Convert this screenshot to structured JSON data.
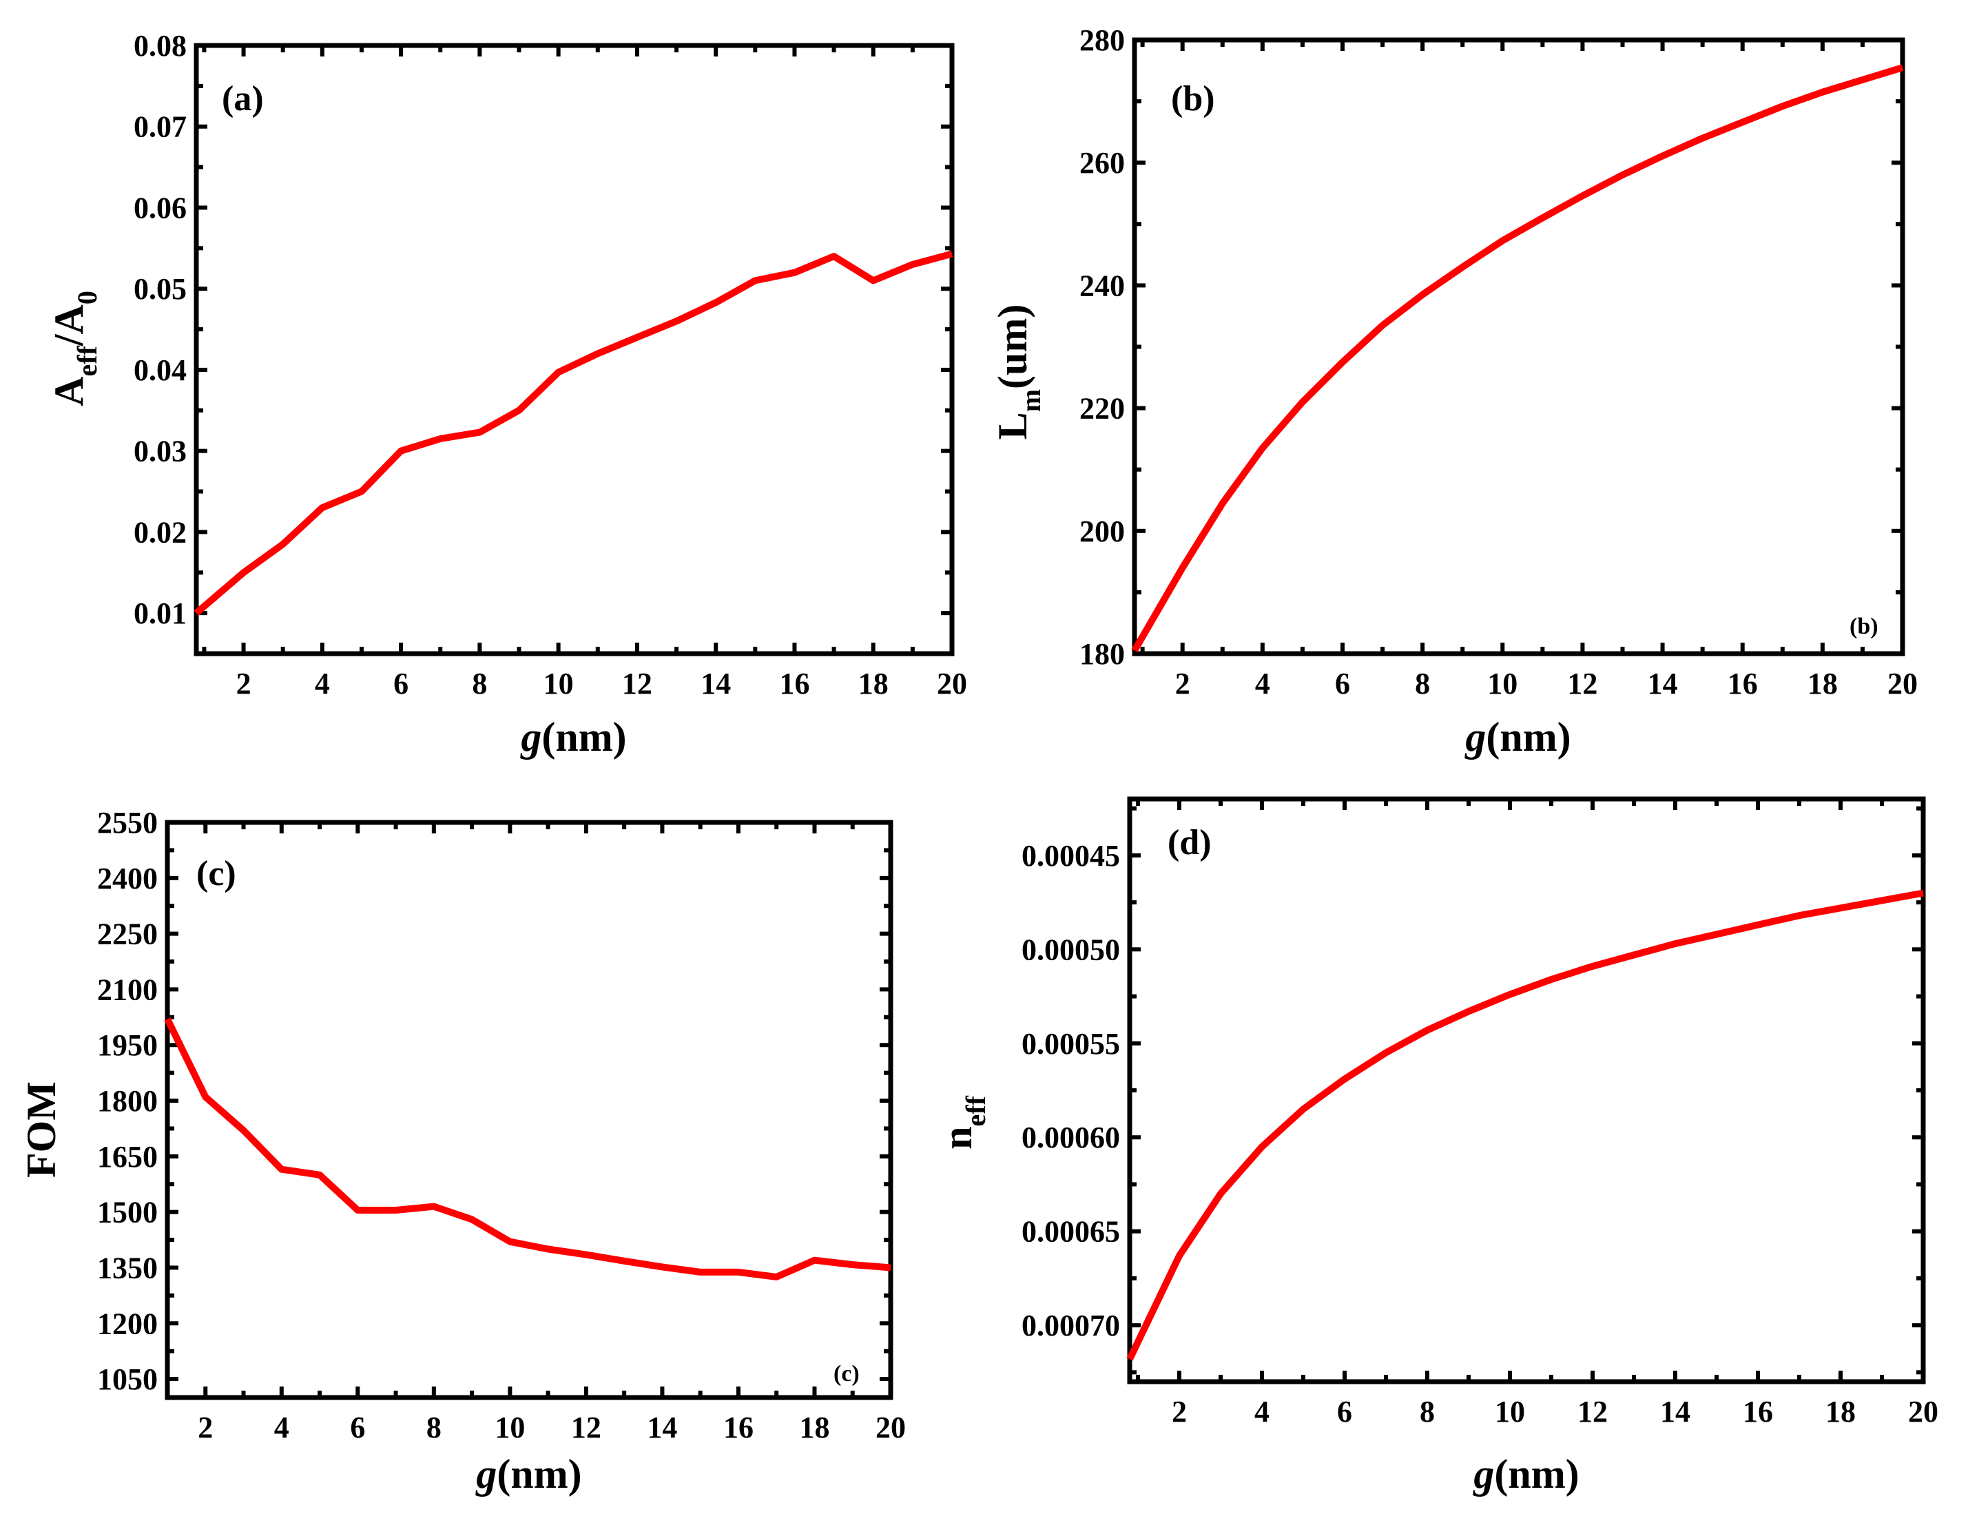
{
  "chart_data": [
    {
      "type": "line",
      "panel_label": "(a)",
      "xlabel": "g(nm)",
      "xlabel_italic_part": "g",
      "xlabel_rest": "(nm)",
      "ylabel_parts": {
        "a": "A",
        "a_sub": "eff",
        "slash": "/A",
        "slash_sub": "0"
      },
      "xlim": [
        0.8,
        20
      ],
      "ylim": [
        0.005,
        0.08
      ],
      "x_ticks": [
        2,
        4,
        6,
        8,
        10,
        12,
        14,
        16,
        18,
        20
      ],
      "x_tick_labels": [
        "2",
        "4",
        "6",
        "8",
        "10",
        "12",
        "14",
        "16",
        "18",
        "20"
      ],
      "y_ticks": [
        0.01,
        0.02,
        0.03,
        0.04,
        0.05,
        0.06,
        0.07,
        0.08
      ],
      "y_tick_labels": [
        "0.01",
        "0.02",
        "0.03",
        "0.04",
        "0.05",
        "0.06",
        "0.07",
        "0.08"
      ],
      "series": [
        {
          "name": "Aeff/A0",
          "color": "#ff0000",
          "x": [
            0.8,
            2,
            3,
            4,
            5,
            6,
            7,
            8,
            9,
            10,
            11,
            12,
            13,
            14,
            15,
            16,
            17,
            18,
            19,
            20
          ],
          "y": [
            0.01,
            0.015,
            0.0185,
            0.023,
            0.025,
            0.03,
            0.0315,
            0.0323,
            0.035,
            0.0397,
            0.042,
            0.044,
            0.046,
            0.0483,
            0.051,
            0.052,
            0.054,
            0.051,
            0.053,
            0.0543
          ]
        }
      ]
    },
    {
      "type": "line",
      "panel_label": "(b)",
      "corner_label": "(b)",
      "xlabel": "g(nm)",
      "xlabel_italic_part": "g",
      "xlabel_rest": "(nm)",
      "ylabel_parts": {
        "a": "L",
        "a_sub": "m",
        "rest": "(um)"
      },
      "xlim": [
        0.8,
        20
      ],
      "ylim": [
        180,
        280
      ],
      "x_ticks": [
        2,
        4,
        6,
        8,
        10,
        12,
        14,
        16,
        18,
        20
      ],
      "x_tick_labels": [
        "2",
        "4",
        "6",
        "8",
        "10",
        "12",
        "14",
        "16",
        "18",
        "20"
      ],
      "y_ticks": [
        180,
        200,
        220,
        240,
        260,
        280
      ],
      "y_tick_labels": [
        "180",
        "200",
        "220",
        "240",
        "260",
        "280"
      ],
      "series": [
        {
          "name": "Lm",
          "color": "#ff0000",
          "x": [
            0.8,
            2,
            3,
            4,
            5,
            6,
            7,
            8,
            9,
            10,
            11,
            12,
            13,
            14,
            15,
            16,
            17,
            18,
            19,
            20
          ],
          "y": [
            180.5,
            194.0,
            204.5,
            213.5,
            221.0,
            227.5,
            233.5,
            238.5,
            243.0,
            247.3,
            251.0,
            254.6,
            258.0,
            261.1,
            264.0,
            266.6,
            269.2,
            271.5,
            273.5,
            275.5
          ]
        }
      ]
    },
    {
      "type": "line",
      "panel_label": "(c)",
      "corner_label": "(c)",
      "xlabel": "g(nm)",
      "xlabel_italic_part": "g",
      "xlabel_rest": "(nm)",
      "ylabel": "FOM",
      "xlim": [
        1,
        20
      ],
      "ylim": [
        1000,
        2550
      ],
      "x_ticks": [
        2,
        4,
        6,
        8,
        10,
        12,
        14,
        16,
        18,
        20
      ],
      "x_tick_labels": [
        "2",
        "4",
        "6",
        "8",
        "10",
        "12",
        "14",
        "16",
        "18",
        "20"
      ],
      "y_ticks": [
        1050,
        1200,
        1350,
        1500,
        1650,
        1800,
        1950,
        2100,
        2250,
        2400,
        2550
      ],
      "y_tick_labels": [
        "1050",
        "1200",
        "1350",
        "1500",
        "1650",
        "1800",
        "1950",
        "2100",
        "2250",
        "2400",
        "2550"
      ],
      "series": [
        {
          "name": "FOM",
          "color": "#ff0000",
          "x": [
            1,
            2,
            3,
            4,
            5,
            6,
            7,
            8,
            9,
            10,
            11,
            12,
            13,
            14,
            15,
            16,
            17,
            18,
            19,
            20
          ],
          "y": [
            2020,
            1810,
            1720,
            1615,
            1600,
            1505,
            1505,
            1515,
            1480,
            1420,
            1400,
            1385,
            1368,
            1352,
            1338,
            1338,
            1325,
            1370,
            1358,
            1350
          ]
        }
      ]
    },
    {
      "type": "line",
      "panel_label": "(d)",
      "xlabel": "g(nm)",
      "xlabel_italic_part": "g",
      "xlabel_rest": "(nm)",
      "ylabel_parts": {
        "a": "n",
        "a_sub": "eff"
      },
      "xlim": [
        0.8,
        20
      ],
      "ylim": [
        0.00073,
        0.00042
      ],
      "x_ticks": [
        2,
        4,
        6,
        8,
        10,
        12,
        14,
        16,
        18,
        20
      ],
      "x_tick_labels": [
        "2",
        "4",
        "6",
        "8",
        "10",
        "12",
        "14",
        "16",
        "18",
        "20"
      ],
      "y_ticks": [
        0.00045,
        0.0005,
        0.00055,
        0.0006,
        0.00065,
        0.0007
      ],
      "y_tick_labels": [
        "0.00045",
        "0.00050",
        "0.00055",
        "0.00060",
        "0.00065",
        "0.00070"
      ],
      "series": [
        {
          "name": "neff",
          "color": "#ff0000",
          "x": [
            0.8,
            2,
            3,
            4,
            5,
            6,
            7,
            8,
            9,
            10,
            11,
            12,
            13,
            14,
            15,
            16,
            17,
            18,
            19,
            20
          ],
          "y": [
            0.000718,
            0.000663,
            0.00063,
            0.000605,
            0.000585,
            0.000569,
            0.000555,
            0.000543,
            0.000533,
            0.000524,
            0.000516,
            0.000509,
            0.000503,
            0.000497,
            0.000492,
            0.000487,
            0.000482,
            0.000478,
            0.000474,
            0.00047
          ]
        }
      ]
    }
  ]
}
